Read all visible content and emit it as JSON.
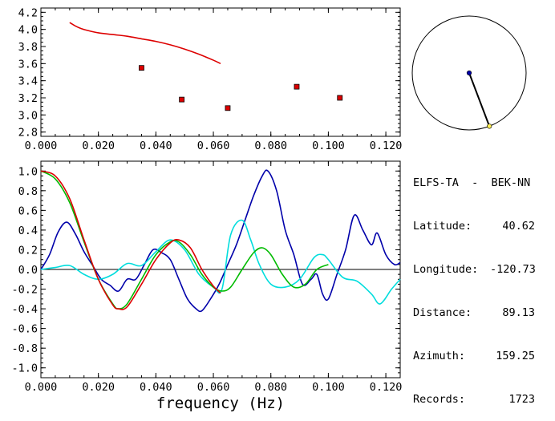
{
  "info": {
    "title": "ELFS-TA  -  BEK-NN",
    "rows": [
      {
        "label": "Latitude:",
        "value": "40.62"
      },
      {
        "label": "Longitude:",
        "value": "-120.73"
      },
      {
        "label": "Distance:",
        "value": "89.13"
      },
      {
        "label": "Azimuth:",
        "value": "159.25"
      },
      {
        "label": "Records:",
        "value": "1723"
      }
    ]
  },
  "compass": {
    "azimuth_deg": 159.25,
    "line_color": "#000000",
    "center_color": "#0000aa",
    "end_color": "#ffee55"
  },
  "chart_data": [
    {
      "type": "scatter",
      "title": "",
      "xlabel": "",
      "ylabel": "",
      "xlim": [
        0.0,
        0.125
      ],
      "ylim": [
        2.75,
        4.25
      ],
      "x_ticks": [
        "0.000",
        "0.020",
        "0.040",
        "0.060",
        "0.080",
        "0.100",
        "0.120"
      ],
      "y_ticks": [
        "2.8",
        "3.0",
        "3.2",
        "3.4",
        "3.6",
        "3.8",
        "4.0",
        "4.2"
      ],
      "series": [
        {
          "kind": "line",
          "color": "#dd0000",
          "x": [
            0.01,
            0.012,
            0.014,
            0.016,
            0.02,
            0.025,
            0.03,
            0.035,
            0.04,
            0.045,
            0.05,
            0.055,
            0.06,
            0.0625
          ],
          "y": [
            4.08,
            4.04,
            4.01,
            3.99,
            3.96,
            3.94,
            3.92,
            3.89,
            3.86,
            3.82,
            3.77,
            3.71,
            3.64,
            3.6
          ]
        },
        {
          "kind": "points",
          "color": "#dd0000",
          "x": [
            0.035,
            0.049,
            0.065,
            0.089,
            0.104
          ],
          "y": [
            3.55,
            3.18,
            3.08,
            3.33,
            3.2
          ]
        }
      ]
    },
    {
      "type": "line",
      "title": "",
      "xlabel": "frequency (Hz)",
      "ylabel": "",
      "xlim": [
        0.0,
        0.125
      ],
      "ylim": [
        -1.1,
        1.1
      ],
      "x_ticks": [
        "0.000",
        "0.020",
        "0.040",
        "0.060",
        "0.080",
        "0.100",
        "0.120"
      ],
      "y_ticks": [
        "-1.0",
        "-0.8",
        "-0.6",
        "-0.4",
        "-0.2",
        "0.0",
        "0.2",
        "0.4",
        "0.6",
        "0.8",
        "1.0"
      ],
      "series": [
        {
          "color": "#0000aa",
          "x": [
            0.0,
            0.003,
            0.006,
            0.009,
            0.012,
            0.015,
            0.018,
            0.021,
            0.024,
            0.027,
            0.03,
            0.033,
            0.036,
            0.039,
            0.042,
            0.045,
            0.048,
            0.051,
            0.054,
            0.056,
            0.059,
            0.062,
            0.065,
            0.068,
            0.071,
            0.074,
            0.077,
            0.079,
            0.082,
            0.085,
            0.088,
            0.091,
            0.094,
            0.096,
            0.098,
            0.1,
            0.103,
            0.106,
            0.109,
            0.112,
            0.115,
            0.117,
            0.12,
            0.123,
            0.125
          ],
          "y": [
            0.0,
            0.15,
            0.38,
            0.48,
            0.36,
            0.18,
            0.04,
            -0.1,
            -0.16,
            -0.22,
            -0.1,
            -0.1,
            0.05,
            0.2,
            0.17,
            0.1,
            -0.1,
            -0.3,
            -0.4,
            -0.42,
            -0.3,
            -0.15,
            0.05,
            0.25,
            0.5,
            0.75,
            0.95,
            1.0,
            0.8,
            0.4,
            0.15,
            -0.15,
            -0.1,
            -0.05,
            -0.25,
            -0.3,
            -0.05,
            0.2,
            0.55,
            0.4,
            0.25,
            0.37,
            0.15,
            0.05,
            0.07
          ]
        },
        {
          "color": "#00dddd",
          "x": [
            0.0,
            0.005,
            0.01,
            0.015,
            0.02,
            0.025,
            0.03,
            0.035,
            0.04,
            0.045,
            0.05,
            0.055,
            0.06,
            0.063,
            0.066,
            0.07,
            0.073,
            0.076,
            0.08,
            0.085,
            0.09,
            0.095,
            0.098,
            0.1,
            0.105,
            0.11,
            0.115,
            0.118,
            0.122,
            0.125
          ],
          "y": [
            0.0,
            0.02,
            0.04,
            -0.05,
            -0.1,
            -0.05,
            0.06,
            0.04,
            0.18,
            0.3,
            0.2,
            -0.05,
            -0.18,
            -0.2,
            0.35,
            0.5,
            0.3,
            0.05,
            -0.15,
            -0.18,
            -0.1,
            0.12,
            0.15,
            0.1,
            -0.08,
            -0.12,
            -0.25,
            -0.35,
            -0.2,
            -0.1
          ]
        },
        {
          "color": "#00bb00",
          "x": [
            0.0,
            0.005,
            0.01,
            0.015,
            0.02,
            0.025,
            0.027,
            0.03,
            0.035,
            0.04,
            0.045,
            0.048,
            0.052,
            0.056,
            0.06,
            0.063,
            0.066,
            0.07,
            0.074,
            0.077,
            0.08,
            0.084,
            0.088,
            0.092,
            0.096,
            0.1
          ],
          "y": [
            1.0,
            0.92,
            0.68,
            0.28,
            -0.1,
            -0.35,
            -0.4,
            -0.35,
            -0.1,
            0.15,
            0.28,
            0.28,
            0.15,
            -0.05,
            -0.18,
            -0.22,
            -0.18,
            0.0,
            0.17,
            0.22,
            0.15,
            -0.05,
            -0.18,
            -0.15,
            0.0,
            0.05
          ]
        },
        {
          "color": "#dd0000",
          "x": [
            0.0,
            0.005,
            0.01,
            0.015,
            0.02,
            0.025,
            0.027,
            0.03,
            0.035,
            0.04,
            0.045,
            0.048,
            0.052,
            0.056,
            0.06,
            0.0625
          ],
          "y": [
            1.0,
            0.95,
            0.72,
            0.3,
            -0.1,
            -0.36,
            -0.4,
            -0.38,
            -0.15,
            0.1,
            0.27,
            0.3,
            0.22,
            0.0,
            -0.17,
            -0.24
          ]
        }
      ]
    }
  ]
}
